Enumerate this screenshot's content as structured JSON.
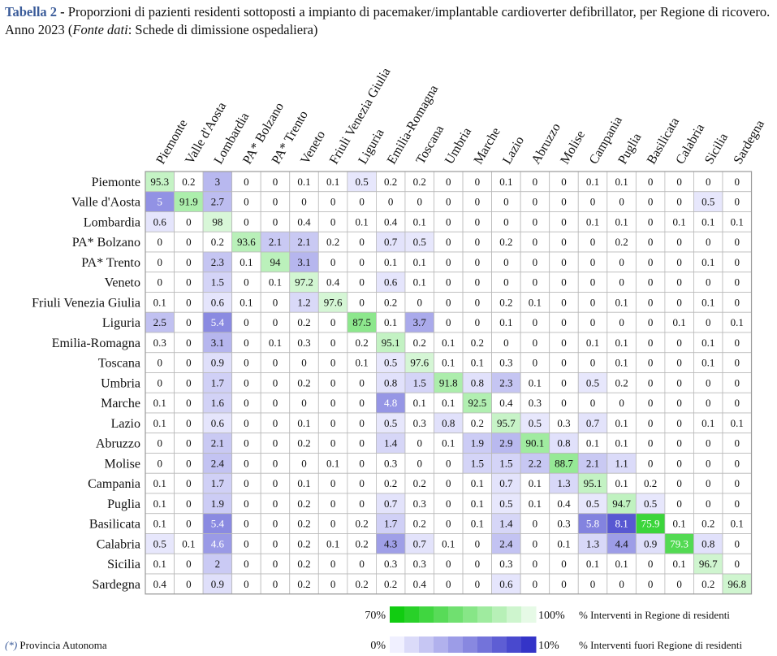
{
  "caption": {
    "label": "Tabella 2",
    "dash": " - ",
    "text1": "Proporzioni di pazienti residenti sottoposti a impianto di pacemaker/implantable cardioverter defibrillator, per Regione di ricovero. Anno 2023 (",
    "source_label": "Fonte dati",
    "text2": ": Schede di dimissione ospedaliera)"
  },
  "footnote": {
    "mark": "(*)",
    "text": " Provincia Autonoma"
  },
  "colors": {
    "diag_low": "#e6fae6",
    "diag_high": "#11cc11",
    "off_low": "#f0f0ff",
    "off_high": "#3434c8",
    "grid": "#b9b9b9",
    "border": "#9a9a9a"
  },
  "chart_data": {
    "type": "heatmap",
    "title": "",
    "xlabel": "",
    "ylabel": "",
    "columns": [
      "Piemonte",
      "Valle d'Aosta",
      "Lombardia",
      "PA* Bolzano",
      "PA* Trento",
      "Veneto",
      "Friuli Venezia Giulia",
      "Liguria",
      "Emilia-Romagna",
      "Toscana",
      "Umbria",
      "Marche",
      "Lazio",
      "Abruzzo",
      "Molise",
      "Campania",
      "Puglia",
      "Basilicata",
      "Calabria",
      "Sicilia",
      "Sardegna"
    ],
    "rows": [
      "Piemonte",
      "Valle d'Aosta",
      "Lombardia",
      "PA* Bolzano",
      "PA* Trento",
      "Veneto",
      "Friuli Venezia Giulia",
      "Liguria",
      "Emilia-Romagna",
      "Toscana",
      "Umbria",
      "Marche",
      "Lazio",
      "Abruzzo",
      "Molise",
      "Campania",
      "Puglia",
      "Basilicata",
      "Calabria",
      "Sicilia",
      "Sardegna"
    ],
    "values": [
      [
        "95.3",
        "0.2",
        "3",
        "0",
        "0",
        "0.1",
        "0.1",
        "0.5",
        "0.2",
        "0.2",
        "0",
        "0",
        "0.1",
        "0",
        "0",
        "0.1",
        "0.1",
        "0",
        "0",
        "0",
        "0"
      ],
      [
        "5",
        "91.9",
        "2.7",
        "0",
        "0",
        "0",
        "0",
        "0",
        "0",
        "0",
        "0",
        "0",
        "0",
        "0",
        "0",
        "0",
        "0",
        "0",
        "0",
        "0.5",
        "0"
      ],
      [
        "0.6",
        "0",
        "98",
        "0",
        "0",
        "0.4",
        "0",
        "0.1",
        "0.4",
        "0.1",
        "0",
        "0",
        "0",
        "0",
        "0",
        "0.1",
        "0.1",
        "0",
        "0.1",
        "0.1",
        "0.1"
      ],
      [
        "0",
        "0",
        "0.2",
        "93.6",
        "2.1",
        "2.1",
        "0.2",
        "0",
        "0.7",
        "0.5",
        "0",
        "0",
        "0.2",
        "0",
        "0",
        "0",
        "0.2",
        "0",
        "0",
        "0",
        "0"
      ],
      [
        "0",
        "0",
        "2.3",
        "0.1",
        "94",
        "3.1",
        "0",
        "0",
        "0.1",
        "0.1",
        "0",
        "0",
        "0",
        "0",
        "0",
        "0",
        "0",
        "0",
        "0",
        "0.1",
        "0"
      ],
      [
        "0",
        "0",
        "1.5",
        "0",
        "0.1",
        "97.2",
        "0.4",
        "0",
        "0.6",
        "0.1",
        "0",
        "0",
        "0",
        "0",
        "0",
        "0",
        "0",
        "0",
        "0",
        "0",
        "0"
      ],
      [
        "0.1",
        "0",
        "0.6",
        "0.1",
        "0",
        "1.2",
        "97.6",
        "0",
        "0.2",
        "0",
        "0",
        "0",
        "0.2",
        "0.1",
        "0",
        "0",
        "0.1",
        "0",
        "0",
        "0.1",
        "0"
      ],
      [
        "2.5",
        "0",
        "5.4",
        "0",
        "0",
        "0.2",
        "0",
        "87.5",
        "0.1",
        "3.7",
        "0",
        "0",
        "0.1",
        "0",
        "0",
        "0",
        "0",
        "0",
        "0.1",
        "0",
        "0.1"
      ],
      [
        "0.3",
        "0",
        "3.1",
        "0",
        "0.1",
        "0.3",
        "0",
        "0.2",
        "95.1",
        "0.2",
        "0.1",
        "0.2",
        "0",
        "0",
        "0",
        "0.1",
        "0.1",
        "0",
        "0",
        "0.1",
        "0"
      ],
      [
        "0",
        "0",
        "0.9",
        "0",
        "0",
        "0",
        "0",
        "0.1",
        "0.5",
        "97.6",
        "0.1",
        "0.1",
        "0.3",
        "0",
        "0",
        "0",
        "0.1",
        "0",
        "0",
        "0.1",
        "0"
      ],
      [
        "0",
        "0",
        "1.7",
        "0",
        "0",
        "0.2",
        "0",
        "0",
        "0.8",
        "1.5",
        "91.8",
        "0.8",
        "2.3",
        "0.1",
        "0",
        "0.5",
        "0.2",
        "0",
        "0",
        "0",
        "0"
      ],
      [
        "0.1",
        "0",
        "1.6",
        "0",
        "0",
        "0",
        "0",
        "0",
        "4.8",
        "0.1",
        "0.1",
        "92.5",
        "0.4",
        "0.3",
        "0",
        "0",
        "0",
        "0",
        "0",
        "0",
        "0"
      ],
      [
        "0.1",
        "0",
        "0.6",
        "0",
        "0",
        "0.1",
        "0",
        "0",
        "0.5",
        "0.3",
        "0.8",
        "0.2",
        "95.7",
        "0.5",
        "0.3",
        "0.7",
        "0.1",
        "0",
        "0",
        "0.1",
        "0.1"
      ],
      [
        "0",
        "0",
        "2.1",
        "0",
        "0",
        "0.2",
        "0",
        "0",
        "1.4",
        "0",
        "0.1",
        "1.9",
        "2.9",
        "90.1",
        "0.8",
        "0.1",
        "0.1",
        "0",
        "0",
        "0",
        "0"
      ],
      [
        "0",
        "0",
        "2.4",
        "0",
        "0",
        "0",
        "0.1",
        "0",
        "0.3",
        "0",
        "0",
        "1.5",
        "1.5",
        "2.2",
        "88.7",
        "2.1",
        "1.1",
        "0",
        "0",
        "0",
        "0"
      ],
      [
        "0.1",
        "0",
        "1.7",
        "0",
        "0",
        "0.1",
        "0",
        "0",
        "0.2",
        "0.2",
        "0",
        "0.1",
        "0.7",
        "0.1",
        "1.3",
        "95.1",
        "0.1",
        "0.2",
        "0",
        "0",
        "0"
      ],
      [
        "0.1",
        "0",
        "1.9",
        "0",
        "0",
        "0.2",
        "0",
        "0",
        "0.7",
        "0.3",
        "0",
        "0.1",
        "0.5",
        "0.1",
        "0.4",
        "0.5",
        "94.7",
        "0.5",
        "0",
        "0",
        "0"
      ],
      [
        "0.1",
        "0",
        "5.4",
        "0",
        "0",
        "0.2",
        "0",
        "0.2",
        "1.7",
        "0.2",
        "0",
        "0.1",
        "1.4",
        "0",
        "0.3",
        "5.8",
        "8.1",
        "75.9",
        "0.1",
        "0.2",
        "0.1"
      ],
      [
        "0.5",
        "0.1",
        "4.6",
        "0",
        "0",
        "0.2",
        "0.1",
        "0.2",
        "4.3",
        "0.7",
        "0.1",
        "0",
        "2.4",
        "0",
        "0.1",
        "1.3",
        "4.4",
        "0.9",
        "79.3",
        "0.8",
        "0"
      ],
      [
        "0.1",
        "0",
        "2",
        "0",
        "0",
        "0.2",
        "0",
        "0",
        "0.3",
        "0.3",
        "0",
        "0",
        "0.3",
        "0",
        "0",
        "0.1",
        "0.1",
        "0",
        "0.1",
        "96.7",
        "0"
      ],
      [
        "0.4",
        "0",
        "0.9",
        "0",
        "0",
        "0.2",
        "0",
        "0.2",
        "0.2",
        "0.4",
        "0",
        "0",
        "0.6",
        "0",
        "0",
        "0",
        "0",
        "0",
        "0",
        "0.2",
        "96.8"
      ]
    ],
    "legend": {
      "diagonal": {
        "min": 70,
        "max": 100,
        "min_label": "70%",
        "max_label": "100%",
        "label": "% Interventi in Regione di residenti"
      },
      "off_diagonal": {
        "min": 0,
        "max": 10,
        "min_label": "0%",
        "max_label": "10%",
        "label": "% Interventi fuori Regione di residenti"
      },
      "placement": "bottom-right"
    },
    "grid": true
  }
}
